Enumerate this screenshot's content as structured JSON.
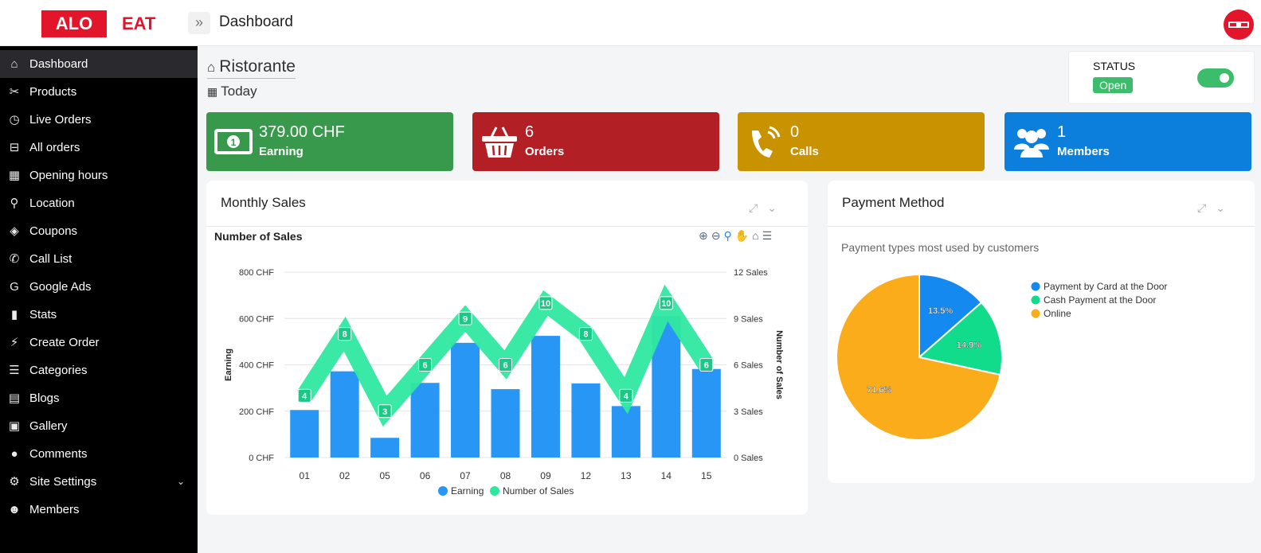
{
  "header": {
    "logo_left": "ALO",
    "logo_right": "EAT",
    "toggle_icon": "double-chevron-right-icon",
    "page_title": "Dashboard"
  },
  "sidebar": {
    "items": [
      {
        "label": "Dashboard",
        "icon": "home-icon",
        "glyph": "⌂",
        "active": true
      },
      {
        "label": "Products",
        "icon": "cutlery-icon",
        "glyph": "✂"
      },
      {
        "label": "Live Orders",
        "icon": "chef-icon",
        "glyph": "◷"
      },
      {
        "label": "All orders",
        "icon": "basket-icon",
        "glyph": "⊟"
      },
      {
        "label": "Opening hours",
        "icon": "calendar-icon",
        "glyph": "▦"
      },
      {
        "label": "Location",
        "icon": "map-marker-icon",
        "glyph": "⚲"
      },
      {
        "label": "Coupons",
        "icon": "tags-icon",
        "glyph": "◈"
      },
      {
        "label": "Call List",
        "icon": "phone-icon",
        "glyph": "✆"
      },
      {
        "label": "Google Ads",
        "icon": "google-icon",
        "glyph": "G"
      },
      {
        "label": "Stats",
        "icon": "bar-chart-icon",
        "glyph": "▮"
      },
      {
        "label": "Create Order",
        "icon": "bolt-icon",
        "glyph": "⚡"
      },
      {
        "label": "Categories",
        "icon": "list-icon",
        "glyph": "☰"
      },
      {
        "label": "Blogs",
        "icon": "newspaper-icon",
        "glyph": "▤"
      },
      {
        "label": "Gallery",
        "icon": "image-icon",
        "glyph": "▣"
      },
      {
        "label": "Comments",
        "icon": "comment-icon",
        "glyph": "●"
      },
      {
        "label": "Site Settings",
        "icon": "gear-icon",
        "glyph": "⚙",
        "has_submenu": true
      },
      {
        "label": "Members",
        "icon": "users-icon",
        "glyph": "☻"
      }
    ]
  },
  "main": {
    "restaurant_name": "Ristorante",
    "period": "Today",
    "status": {
      "label": "STATUS",
      "value": "Open",
      "toggle_on": true
    }
  },
  "stats": [
    {
      "value": "379.00 CHF",
      "label": "Earning",
      "color": "#38984b",
      "icon": "money-icon"
    },
    {
      "value": "6",
      "label": "Orders",
      "color": "#b21f24",
      "icon": "basket-icon"
    },
    {
      "value": "0",
      "label": "Calls",
      "color": "#c89200",
      "icon": "phone-ringing-icon"
    },
    {
      "value": "1",
      "label": "Members",
      "color": "#0b7fdb",
      "icon": "users-icon"
    }
  ],
  "monthly_sales": {
    "panel_title": "Monthly Sales",
    "tools": [
      "expand-icon",
      "chevron-down-icon"
    ],
    "toolbar": [
      "zoom-in-icon",
      "zoom-out-icon",
      "selection-zoom-icon",
      "pan-icon",
      "reset-home-icon",
      "menu-icon"
    ]
  },
  "payment_panel": {
    "panel_title": "Payment Method",
    "subtitle": "Payment types most used by customers"
  },
  "chart_data": [
    {
      "type": "bar",
      "title": "Number of Sales",
      "categories": [
        "01",
        "02",
        "05",
        "06",
        "07",
        "08",
        "09",
        "12",
        "13",
        "14",
        "15"
      ],
      "series": [
        {
          "name": "Earning",
          "type": "bar",
          "axis": "left",
          "color": "#2896f5",
          "values": [
            205,
            372,
            85,
            322,
            495,
            295,
            525,
            320,
            222,
            610,
            382
          ]
        },
        {
          "name": "Number of Sales",
          "type": "line",
          "axis": "right",
          "color": "#2fe8a0",
          "values": [
            4,
            8,
            3,
            6,
            9,
            6,
            10,
            8,
            4,
            10,
            6
          ]
        }
      ],
      "y_left": {
        "label": "Earning",
        "ticks": [
          "0 CHF",
          "200 CHF",
          "400 CHF",
          "600 CHF",
          "800 CHF"
        ],
        "ylim": [
          0,
          800
        ]
      },
      "y_right": {
        "label": "Number of Sales",
        "ticks": [
          "0 Sales",
          "3 Sales",
          "6 Sales",
          "9 Sales",
          "12 Sales"
        ],
        "ylim": [
          0,
          12
        ]
      },
      "legend": "bottom-center",
      "grid": true
    },
    {
      "type": "pie",
      "labels": [
        "Payment by Card at the Door",
        "Cash Payment at the Door",
        "Online"
      ],
      "values": [
        13.5,
        14.9,
        71.6
      ],
      "value_labels": [
        "13.5%",
        "14.9%",
        "71.6%"
      ],
      "colors": [
        "#1489ef",
        "#10dc8c",
        "#fbac1b"
      ],
      "legend": "top-right"
    }
  ]
}
